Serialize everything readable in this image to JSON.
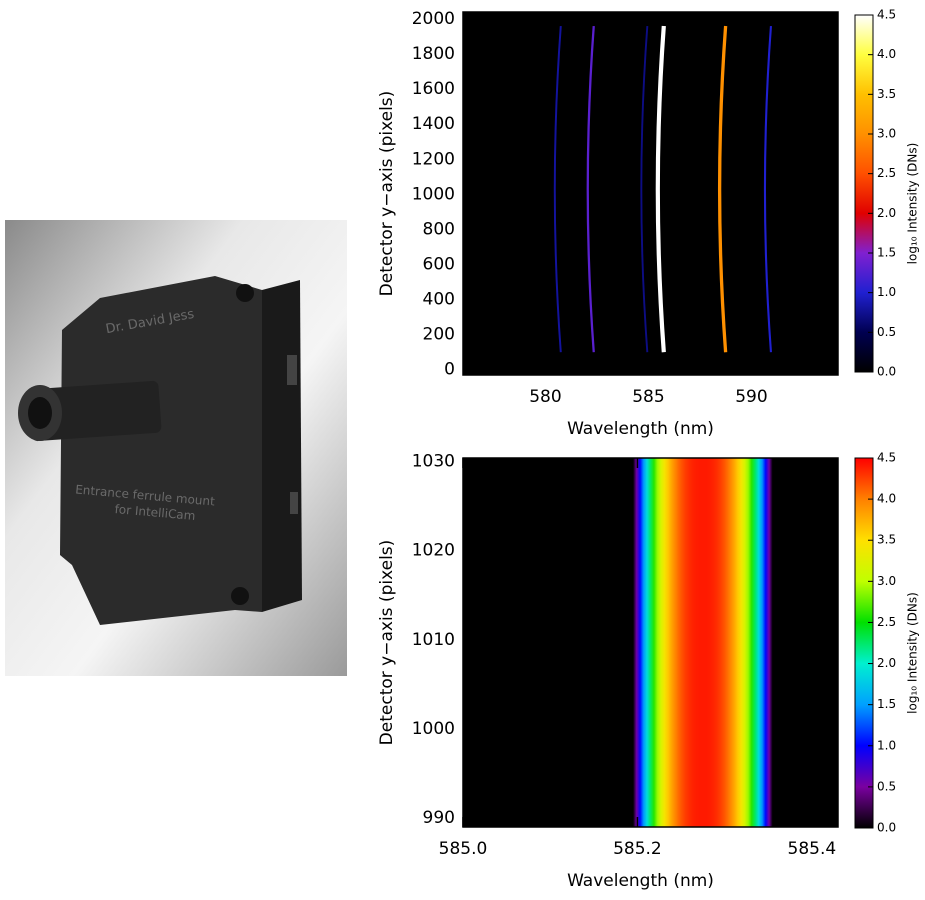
{
  "photo": {
    "texts": [
      "Dr. David Jess",
      "Entrance ferrule mount",
      "for IntelliCam"
    ]
  },
  "chart_data": [
    {
      "type": "image",
      "xlabel": "Wavelength (nm)",
      "ylabel": "Detector y−axis (pixels)",
      "xlim": [
        576,
        594.2
      ],
      "xticks": [
        580,
        585,
        590
      ],
      "ylim": [
        -30,
        2040
      ],
      "yticks": [
        0,
        200,
        400,
        600,
        800,
        1000,
        1200,
        1400,
        1600,
        1800,
        2000
      ],
      "rows": [
        100,
        1960
      ],
      "lines": [
        {
          "wavelength": 580.6,
          "peak": 0.8
        },
        {
          "wavelength": 582.2,
          "peak": 1.3
        },
        {
          "wavelength": 584.8,
          "peak": 0.7
        },
        {
          "wavelength": 585.6,
          "peak": 4.5
        },
        {
          "wavelength": 588.6,
          "peak": 3.0
        },
        {
          "wavelength": 590.8,
          "peak": 1.0
        }
      ],
      "colorbar": {
        "label": "log₁₀ Intensity (DNs)",
        "lim": [
          0,
          4.5
        ],
        "ticks": [
          {
            "value": 0,
            "label": "0.0"
          },
          0.5,
          {
            "value": 1,
            "label": "1.0"
          },
          1.5,
          {
            "value": 2,
            "label": "2.0"
          },
          2.5,
          {
            "value": 3,
            "label": "3.0"
          },
          3.5,
          {
            "value": 4,
            "label": "4.0"
          },
          4.5
        ],
        "colors": [
          "#000000",
          "#000050",
          "#2020d0",
          "#8020d0",
          "#e00000",
          "#ff5000",
          "#ff9000",
          "#ffc000",
          "#ffff40",
          "#ffffff"
        ]
      }
    },
    {
      "type": "image",
      "xlabel": "Wavelength (nm)",
      "ylabel": "Detector y−axis (pixels)",
      "xlim": [
        585.0,
        585.43
      ],
      "xticks": [
        {
          "value": 585.0,
          "label": "585.0"
        },
        585.2,
        585.4
      ],
      "ylim": [
        989,
        1030.4
      ],
      "yticks": [
        990,
        1000,
        1010,
        1020,
        1030
      ],
      "rows": [
        989,
        1030.4
      ],
      "lines": [
        {
          "wavelength": 585.275,
          "peak": 4.4
        }
      ],
      "colorbar": {
        "label": "log₁₀ Intensity (DNs)",
        "lim": [
          0,
          4.5
        ],
        "ticks": [
          {
            "value": 0,
            "label": "0.0"
          },
          0.5,
          {
            "value": 1,
            "label": "1.0"
          },
          1.5,
          {
            "value": 2,
            "label": "2.0"
          },
          2.5,
          {
            "value": 3,
            "label": "3.0"
          },
          3.5,
          {
            "value": 4,
            "label": "4.0"
          },
          4.5
        ],
        "colors": [
          "#000000",
          "#7a00a0",
          "#0000ff",
          "#00a0ff",
          "#00f0d0",
          "#00e000",
          "#c0ff00",
          "#ffe000",
          "#ff8000",
          "#ff0000"
        ]
      }
    }
  ]
}
